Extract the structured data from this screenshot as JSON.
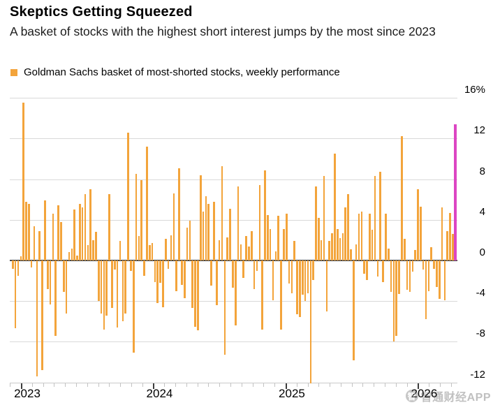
{
  "header": {
    "title": "Skeptics Getting Squeezed",
    "subtitle": "A basket of stocks with the highest short interest jumps by the most since 2023"
  },
  "legend": {
    "swatch_color": "#F3A43B",
    "label": "Goldman Sachs basket of most-shorted stocks, weekly performance"
  },
  "watermark": {
    "logo_glyph": "智",
    "text": "智通财经APP"
  },
  "chart_data": {
    "type": "bar",
    "title": "Skeptics Getting Squeezed",
    "subtitle": "A basket of stocks with the highest short interest jumps by the most since 2023",
    "unit": "%",
    "x_categories": [
      "2023",
      "2024",
      "2025",
      "2026"
    ],
    "x_minor_tick": "monthly",
    "y_ticks": [
      {
        "label": "16%",
        "value": 16
      },
      {
        "label": "12",
        "value": 12
      },
      {
        "label": "8",
        "value": 8
      },
      {
        "label": "4",
        "value": 4
      },
      {
        "label": "0",
        "value": 0
      },
      {
        "label": "-4",
        "value": -4
      },
      {
        "label": "-8",
        "value": -8
      },
      {
        "label": "-12",
        "value": -12
      }
    ],
    "ylim": [
      -12.8,
      16
    ],
    "grid": "horizontal",
    "zero_line": true,
    "y_axis_side": "right",
    "legend_position": "top-left",
    "bar_color": "#F3A43B",
    "highlight_last_color": "#DC46C3",
    "highlight_last_value": 13.4,
    "series": [
      {
        "name": "Goldman Sachs basket of most-shorted stocks, weekly performance",
        "frequency": "weekly",
        "values": [
          -0.8,
          -6.7,
          -1.5,
          0.4,
          15.5,
          5.8,
          5.6,
          -0.7,
          3.4,
          -11.4,
          2.9,
          -10.8,
          5.9,
          -2.8,
          -4.3,
          4.6,
          -7.4,
          5.4,
          3.8,
          -3.1,
          -5.2,
          0.8,
          1.2,
          5.0,
          0.5,
          5.6,
          5.2,
          6.5,
          1.5,
          7.0,
          2.0,
          2.8,
          -4.0,
          -5.2,
          -6.8,
          -5.4,
          6.5,
          -4.7,
          -0.9,
          -6.6,
          1.9,
          -6.0,
          -5.2,
          12.6,
          -1.0,
          -9.1,
          8.5,
          2.4,
          7.9,
          -1.5,
          11.2,
          1.5,
          1.7,
          -2.1,
          -4.2,
          -2.2,
          -4.6,
          2.1,
          -0.8,
          2.5,
          6.6,
          -3.0,
          9.1,
          -2.4,
          -3.7,
          3.2,
          3.9,
          -4.7,
          -6.5,
          -6.9,
          8.4,
          4.8,
          6.3,
          5.6,
          -2.5,
          5.8,
          -4.4,
          2.0,
          9.3,
          -9.3,
          2.3,
          5.1,
          -2.7,
          -6.4,
          7.3,
          1.6,
          -1.7,
          2.4,
          1.4,
          2.9,
          -2.8,
          -1.0,
          7.4,
          -6.8,
          8.9,
          4.5,
          3.1,
          -3.9,
          0.9,
          4.4,
          -6.8,
          3.1,
          4.6,
          -2.3,
          -3.2,
          1.9,
          -5.3,
          -5.6,
          -3.4,
          -4.0,
          -3.2,
          -12.1,
          -1.9,
          7.3,
          4.2,
          2.0,
          8.3,
          -5.0,
          1.9,
          2.7,
          10.5,
          3.1,
          2.2,
          2.7,
          5.2,
          6.5,
          1.1,
          -9.8,
          1.6,
          4.6,
          4.8,
          -1.3,
          -1.9,
          4.6,
          3.0,
          8.3,
          -1.6,
          8.7,
          -2.1,
          4.6,
          1.2,
          -3.1,
          -8.0,
          -7.4,
          -3.3,
          12.2,
          2.1,
          -2.9,
          -3.1,
          -1.1,
          1.0,
          7.0,
          5.3,
          -0.9,
          -5.8,
          -3.0,
          1.3,
          -0.8,
          -2.6,
          -3.8,
          5.2,
          -3.9,
          2.9,
          4.7,
          2.6,
          13.4
        ]
      }
    ]
  }
}
